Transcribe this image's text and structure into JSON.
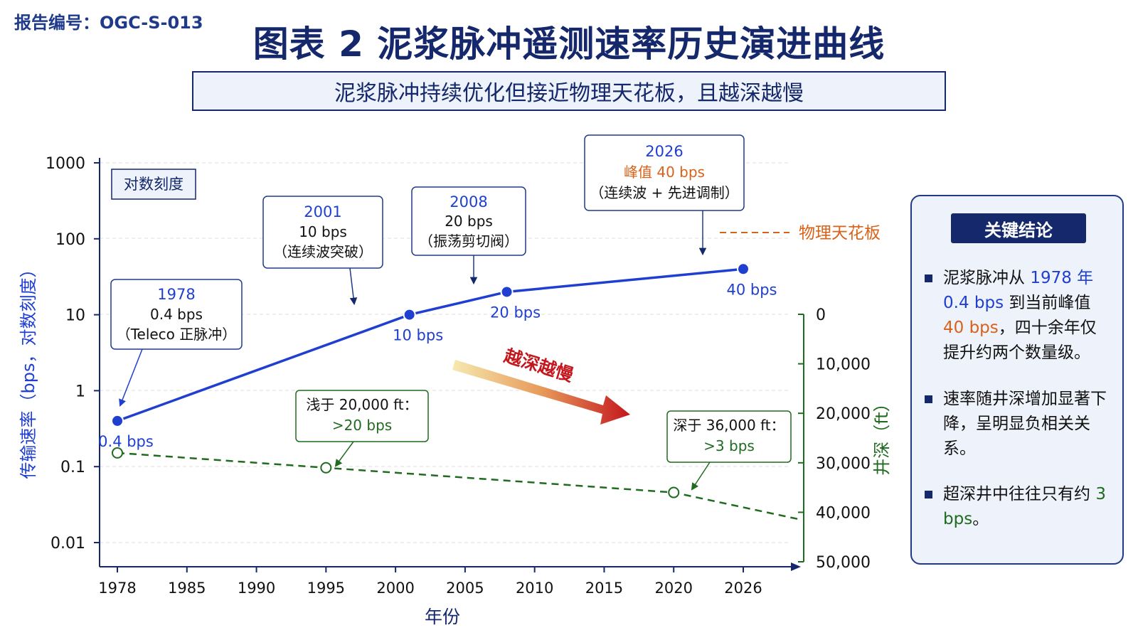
{
  "report_id": "报告编号：OGC-S-013",
  "title": "图表 2  泥浆脉冲遥测速率历史演进曲线",
  "subtitle": "泥浆脉冲持续优化但接近物理天花板，且越深越慢",
  "chart_data": {
    "type": "line",
    "scale_note": "对数刻度",
    "xlabel": "年份",
    "ylabel": "传输速率（bps，对数刻度）",
    "y2label": "井深（ft）",
    "x_ticks": [
      "1978",
      "1985",
      "1990",
      "1995",
      "2000",
      "2005",
      "2010",
      "2015",
      "2020",
      "2026"
    ],
    "y_ticks": [
      "0.01",
      "0.1",
      "1",
      "10",
      "100",
      "1000"
    ],
    "y2_ticks": [
      "0",
      "10,000",
      "20,000",
      "30,000",
      "40,000",
      "50,000"
    ],
    "ylim": [
      0.01,
      1000
    ],
    "y2lim": [
      0,
      50000
    ],
    "y_scale": "log",
    "grid": "horizontal dashed",
    "series": [
      {
        "key": "rate",
        "color": "#1f3fd1",
        "style": "solid",
        "points": [
          {
            "year": "1978",
            "value": 0.4,
            "label": "0.4 bps"
          },
          {
            "year": "2001",
            "value": 10,
            "label": "10 bps"
          },
          {
            "year": "2008",
            "value": 20,
            "label": "20 bps"
          },
          {
            "year": "2026",
            "value": 40,
            "label": "40 bps"
          }
        ]
      },
      {
        "key": "depth",
        "color": "#1f6b1f",
        "style": "dashed",
        "axis": "right",
        "points": [
          {
            "year": "1978",
            "depth_ft": 28000
          },
          {
            "year": "1995",
            "depth_ft": 31000
          },
          {
            "year": "2020",
            "depth_ft": 36000
          },
          {
            "year": "2026",
            "depth_ft": 39000
          }
        ]
      }
    ],
    "callouts": [
      {
        "lines": [
          "1978",
          "0.4 bps",
          "（Teleco 正脉冲）"
        ]
      },
      {
        "lines": [
          "2001",
          "10 bps",
          "（连续波突破）"
        ]
      },
      {
        "lines": [
          "2008",
          "20 bps",
          "（振荡剪切阀）"
        ]
      },
      {
        "lines": [
          "2026",
          "峰值 40 bps",
          "（连续波 + 先进调制）"
        ]
      }
    ],
    "depth_callouts": [
      {
        "lines": [
          "浅于 20,000 ft：",
          ">20 bps"
        ]
      },
      {
        "lines": [
          "深于 36,000 ft：",
          ">3 bps"
        ]
      }
    ],
    "ceiling_label": "物理天花板",
    "trend_label": "越深越慢"
  },
  "side_panel": {
    "title": "关键结论",
    "b1": {
      "t1": "泥浆脉冲从 ",
      "t2": "1978 年 0.4 bps",
      "t3": " 到当前峰值 ",
      "t4": "40 bps",
      "t5": "，四十余年仅提升约两个数量级。"
    },
    "b2": "速率随井深增加显著下降，呈明显负相关关系。",
    "b3": {
      "t1": "超深井中往往只有约 ",
      "t2": "3 bps",
      "t3": "。"
    }
  },
  "colors": {
    "navy": "#14286b",
    "blue": "#1f3fd1",
    "green": "#1f6b1f",
    "orange": "#d9621a"
  }
}
